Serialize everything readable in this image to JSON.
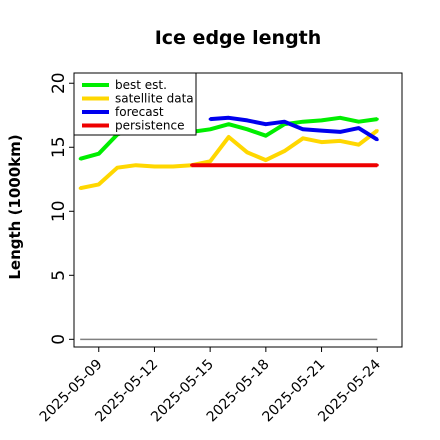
{
  "chart_data": {
    "type": "line",
    "title": "Ice edge length",
    "xlabel": "",
    "ylabel": "Length (1000km)",
    "ylim": [
      -0.6,
      20.8
    ],
    "yticks": [
      0,
      5,
      10,
      15,
      20
    ],
    "xlim": [
      "2025-05-07T16:00",
      "2025-05-25T08:00"
    ],
    "xticks": [
      "2025-05-09",
      "2025-05-12",
      "2025-05-15",
      "2025-05-18",
      "2025-05-21",
      "2025-05-24"
    ],
    "xtick_highlight": "2025-05-15",
    "xtick_highlight_color": "#1a7a1a",
    "grid": false,
    "legend_position": "top-left",
    "baseline": {
      "value": 0,
      "color": "#808080"
    },
    "series": [
      {
        "name": "best est.",
        "color": "#00ee00",
        "x": [
          "2025-05-08",
          "2025-05-09",
          "2025-05-10",
          "2025-05-11",
          "2025-05-12",
          "2025-05-13",
          "2025-05-14",
          "2025-05-15",
          "2025-05-16",
          "2025-05-17",
          "2025-05-18",
          "2025-05-19",
          "2025-05-20",
          "2025-05-21",
          "2025-05-22",
          "2025-05-23",
          "2025-05-24"
        ],
        "y": [
          14.1,
          14.5,
          16.0,
          16.5,
          16.3,
          16.2,
          16.2,
          16.4,
          16.8,
          16.4,
          15.9,
          16.8,
          17.0,
          17.1,
          17.3,
          17.0,
          17.2
        ]
      },
      {
        "name": "satellite data",
        "color": "#ffd700",
        "x": [
          "2025-05-08",
          "2025-05-09",
          "2025-05-10",
          "2025-05-11",
          "2025-05-12",
          "2025-05-13",
          "2025-05-14",
          "2025-05-15",
          "2025-05-16",
          "2025-05-17",
          "2025-05-18",
          "2025-05-19",
          "2025-05-20",
          "2025-05-21",
          "2025-05-22",
          "2025-05-23",
          "2025-05-24"
        ],
        "y": [
          11.8,
          12.1,
          13.4,
          13.6,
          13.5,
          13.5,
          13.6,
          13.9,
          15.8,
          14.6,
          14.0,
          14.7,
          15.7,
          15.4,
          15.5,
          15.2,
          16.3
        ]
      },
      {
        "name": "forecast",
        "color": "#0000ee",
        "x": [
          "2025-05-15",
          "2025-05-16",
          "2025-05-17",
          "2025-05-18",
          "2025-05-19",
          "2025-05-20",
          "2025-05-21",
          "2025-05-22",
          "2025-05-23",
          "2025-05-24"
        ],
        "y": [
          17.2,
          17.3,
          17.1,
          16.8,
          17.0,
          16.4,
          16.3,
          16.2,
          16.5,
          15.6
        ]
      },
      {
        "name": "persistence",
        "color": "#ee0000",
        "x": [
          "2025-05-14",
          "2025-05-24"
        ],
        "y": [
          13.6,
          13.6
        ]
      }
    ]
  }
}
